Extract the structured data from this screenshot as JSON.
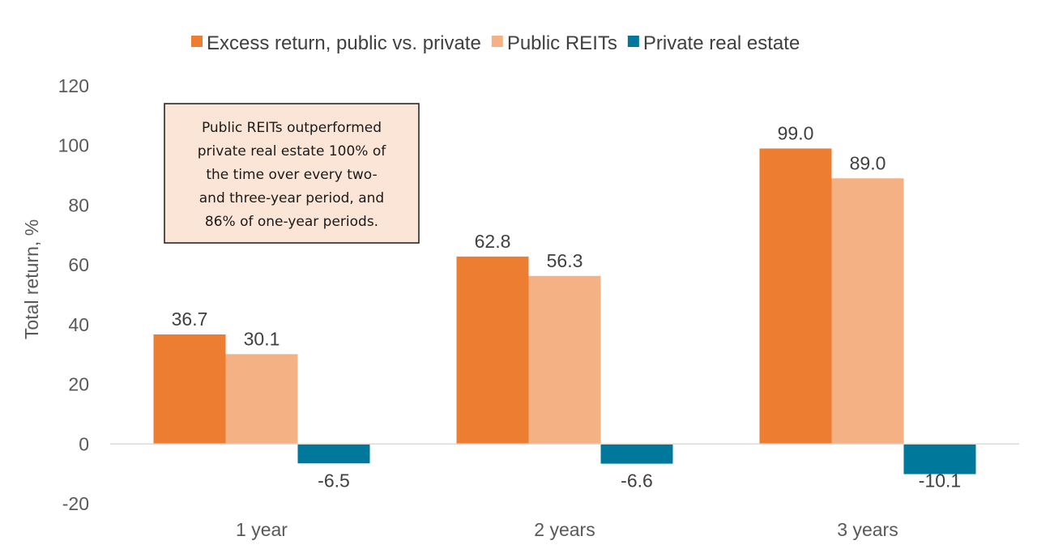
{
  "chart_data": {
    "type": "bar",
    "categories": [
      "1 year",
      "2 years",
      "3 years"
    ],
    "series": [
      {
        "name": "Excess return, public vs. private",
        "color": "#ED7D31",
        "values": [
          36.7,
          62.8,
          99.0
        ],
        "labels": [
          "36.7",
          "62.8",
          "99.0"
        ]
      },
      {
        "name": "Public REITs",
        "color": "#F4B183",
        "values": [
          30.1,
          56.3,
          89.0
        ],
        "labels": [
          "30.1",
          "56.3",
          "89.0"
        ]
      },
      {
        "name": "Private real estate",
        "color": "#00789C",
        "values": [
          -6.5,
          -6.6,
          -10.1
        ],
        "labels": [
          "-6.5",
          "-6.6",
          "-10.1"
        ]
      }
    ],
    "ylabel": "Total return, %",
    "xlabel": "",
    "ylim": [
      -20,
      120
    ],
    "yticks": [
      120,
      100,
      80,
      60,
      40,
      20,
      0,
      -20
    ],
    "grid": false,
    "legend_position": "top",
    "annotation": {
      "lines": [
        "Public REITs outperformed",
        "private real estate 100% of",
        "the time over every two-",
        "and three-year period, and",
        "86% of one-year periods."
      ],
      "fill": "#FBE5D6",
      "border": "#1a1a1a"
    }
  }
}
